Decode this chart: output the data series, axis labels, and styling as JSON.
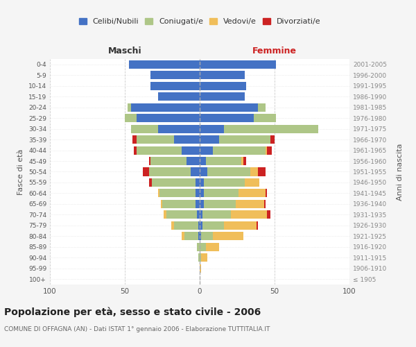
{
  "age_groups": [
    "100+",
    "95-99",
    "90-94",
    "85-89",
    "80-84",
    "75-79",
    "70-74",
    "65-69",
    "60-64",
    "55-59",
    "50-54",
    "45-49",
    "40-44",
    "35-39",
    "30-34",
    "25-29",
    "20-24",
    "15-19",
    "10-14",
    "5-9",
    "0-4"
  ],
  "birth_years": [
    "≤ 1905",
    "1906-1910",
    "1911-1915",
    "1916-1920",
    "1921-1925",
    "1926-1930",
    "1931-1935",
    "1936-1940",
    "1941-1945",
    "1946-1950",
    "1951-1955",
    "1956-1960",
    "1961-1965",
    "1966-1970",
    "1971-1975",
    "1976-1980",
    "1981-1985",
    "1986-1990",
    "1991-1995",
    "1996-2000",
    "2001-2005"
  ],
  "maschi": {
    "celibi": [
      0,
      0,
      0,
      0,
      1,
      1,
      2,
      3,
      3,
      3,
      6,
      9,
      12,
      17,
      28,
      42,
      46,
      28,
      33,
      33,
      47
    ],
    "coniugati": [
      0,
      0,
      1,
      2,
      9,
      16,
      20,
      22,
      24,
      29,
      28,
      24,
      30,
      25,
      18,
      8,
      2,
      0,
      0,
      0,
      0
    ],
    "vedovi": [
      0,
      0,
      0,
      0,
      2,
      2,
      2,
      1,
      1,
      0,
      0,
      0,
      0,
      0,
      0,
      0,
      0,
      0,
      0,
      0,
      0
    ],
    "divorziati": [
      0,
      0,
      0,
      0,
      0,
      0,
      0,
      0,
      0,
      2,
      4,
      1,
      2,
      3,
      0,
      0,
      0,
      0,
      0,
      0,
      0
    ]
  },
  "femmine": {
    "nubili": [
      0,
      0,
      0,
      0,
      1,
      2,
      2,
      3,
      3,
      3,
      5,
      4,
      9,
      13,
      16,
      36,
      39,
      30,
      31,
      30,
      51
    ],
    "coniugate": [
      0,
      0,
      1,
      4,
      8,
      14,
      19,
      21,
      23,
      27,
      29,
      24,
      35,
      34,
      63,
      15,
      5,
      0,
      0,
      0,
      0
    ],
    "vedove": [
      0,
      1,
      4,
      9,
      20,
      22,
      24,
      19,
      18,
      10,
      5,
      1,
      1,
      0,
      0,
      0,
      0,
      0,
      0,
      0,
      0
    ],
    "divorziate": [
      0,
      0,
      0,
      0,
      0,
      1,
      2,
      1,
      1,
      0,
      5,
      2,
      3,
      3,
      0,
      0,
      0,
      0,
      0,
      0,
      0
    ]
  },
  "colors": {
    "celibi_nubili": "#4472c4",
    "coniugati": "#aec687",
    "vedovi": "#f0be5a",
    "divorziati": "#cc2222"
  },
  "xlim": 100,
  "title": "Popolazione per età, sesso e stato civile - 2006",
  "subtitle": "COMUNE DI OFFAGNA (AN) - Dati ISTAT 1° gennaio 2006 - Elaborazione TUTTITALIA.IT",
  "ylabel_left": "Fasce di età",
  "ylabel_right": "Anni di nascita",
  "xlabel_left": "Maschi",
  "xlabel_right": "Femmine",
  "legend_labels": [
    "Celibi/Nubili",
    "Coniugati/e",
    "Vedovi/e",
    "Divorziati/e"
  ],
  "bg_color": "#f5f5f5",
  "plot_bg_color": "#ffffff"
}
